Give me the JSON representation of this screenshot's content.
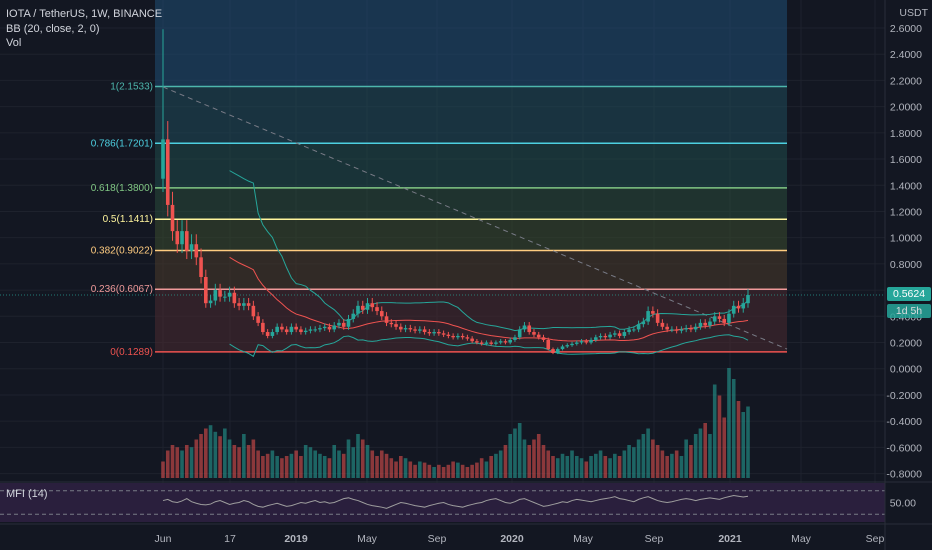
{
  "header": {
    "symbol": "IOTA / TetherUS, 1W, BINANCE",
    "indicator_bb": "BB (20, close, 2, 0)",
    "indicator_vol": "Vol",
    "indicator_mfi": "MFI (14)"
  },
  "price_axis": {
    "currency": "USDT",
    "ticks": [
      "2.6000",
      "2.4000",
      "2.2000",
      "2.0000",
      "1.8000",
      "1.6000",
      "1.4000",
      "1.2000",
      "1.0000",
      "0.8000",
      "0.6000",
      "0.4000",
      "0.2000",
      "0.0000",
      "-0.2000",
      "-0.4000",
      "-0.6000",
      "-0.8000"
    ],
    "current_price": "0.5624",
    "countdown": "1d 5h"
  },
  "mfi_axis": {
    "ticks": [
      "50.00"
    ]
  },
  "time_axis": {
    "labels": [
      "Jun",
      "17",
      "2019",
      "May",
      "Sep",
      "2020",
      "May",
      "Sep",
      "2021",
      "May",
      "Sep"
    ]
  },
  "colors": {
    "background": "#131722",
    "up": "#26a69a",
    "down": "#ef5350",
    "bb_band": "#26a69a",
    "bb_basis": "#ef5350",
    "trendline": "#787b86",
    "mfi_line": "#7e57c2",
    "mfi_bg": "#2a1f3d",
    "fib_1": "#4db6ac",
    "fib_0786": "#4dd0e1",
    "fib_0618": "#81c784",
    "fib_05": "#fff59d",
    "fib_0382": "#ffcc80",
    "fib_0236": "#ef9a9a",
    "fib_0": "#ef5350"
  },
  "chart_data": {
    "type": "candlestick",
    "title": "IOTA / TetherUS, 1W, BINANCE",
    "ylim": [
      -0.85,
      2.75
    ],
    "fib_levels": [
      {
        "label": "1(2.1533)",
        "ratio": 1,
        "price": 2.1533
      },
      {
        "label": "0.786(1.7201)",
        "ratio": 0.786,
        "price": 1.7201
      },
      {
        "label": "0.618(1.3800)",
        "ratio": 0.618,
        "price": 1.38
      },
      {
        "label": "0.5(1.1411)",
        "ratio": 0.5,
        "price": 1.1411
      },
      {
        "label": "0.382(0.9022)",
        "ratio": 0.382,
        "price": 0.9022
      },
      {
        "label": "0.236(0.6067)",
        "ratio": 0.236,
        "price": 0.6067
      },
      {
        "label": "0(0.1289)",
        "ratio": 0,
        "price": 0.1289
      }
    ],
    "closes": [
      1.75,
      1.25,
      1.05,
      0.95,
      1.05,
      0.9,
      0.95,
      0.85,
      0.7,
      0.5,
      0.52,
      0.6,
      0.55,
      0.55,
      0.58,
      0.5,
      0.48,
      0.5,
      0.48,
      0.4,
      0.35,
      0.28,
      0.25,
      0.28,
      0.32,
      0.3,
      0.28,
      0.32,
      0.3,
      0.28,
      0.29,
      0.3,
      0.3,
      0.31,
      0.32,
      0.3,
      0.33,
      0.35,
      0.32,
      0.38,
      0.42,
      0.48,
      0.45,
      0.5,
      0.47,
      0.44,
      0.4,
      0.35,
      0.34,
      0.32,
      0.3,
      0.31,
      0.3,
      0.29,
      0.3,
      0.28,
      0.27,
      0.28,
      0.27,
      0.26,
      0.25,
      0.24,
      0.25,
      0.24,
      0.23,
      0.21,
      0.2,
      0.19,
      0.2,
      0.19,
      0.2,
      0.21,
      0.2,
      0.22,
      0.24,
      0.3,
      0.33,
      0.28,
      0.26,
      0.24,
      0.22,
      0.15,
      0.12,
      0.15,
      0.17,
      0.18,
      0.19,
      0.2,
      0.21,
      0.2,
      0.22,
      0.24,
      0.25,
      0.24,
      0.26,
      0.27,
      0.25,
      0.28,
      0.3,
      0.3,
      0.34,
      0.36,
      0.44,
      0.42,
      0.35,
      0.32,
      0.3,
      0.3,
      0.29,
      0.3,
      0.31,
      0.3,
      0.32,
      0.35,
      0.33,
      0.36,
      0.4,
      0.38,
      0.35,
      0.42,
      0.48,
      0.46,
      0.5,
      0.5624
    ],
    "volume_relative": [
      0.15,
      0.25,
      0.3,
      0.28,
      0.25,
      0.3,
      0.28,
      0.35,
      0.4,
      0.45,
      0.48,
      0.42,
      0.38,
      0.45,
      0.35,
      0.3,
      0.28,
      0.4,
      0.3,
      0.35,
      0.25,
      0.2,
      0.22,
      0.25,
      0.2,
      0.18,
      0.2,
      0.22,
      0.25,
      0.2,
      0.3,
      0.28,
      0.25,
      0.22,
      0.2,
      0.18,
      0.3,
      0.25,
      0.22,
      0.35,
      0.28,
      0.4,
      0.35,
      0.3,
      0.25,
      0.2,
      0.25,
      0.22,
      0.18,
      0.15,
      0.2,
      0.18,
      0.15,
      0.12,
      0.15,
      0.14,
      0.12,
      0.1,
      0.12,
      0.1,
      0.12,
      0.15,
      0.14,
      0.12,
      0.1,
      0.12,
      0.14,
      0.18,
      0.15,
      0.2,
      0.22,
      0.25,
      0.3,
      0.4,
      0.45,
      0.5,
      0.35,
      0.3,
      0.35,
      0.4,
      0.3,
      0.25,
      0.2,
      0.18,
      0.22,
      0.2,
      0.25,
      0.2,
      0.18,
      0.15,
      0.2,
      0.22,
      0.25,
      0.2,
      0.18,
      0.22,
      0.2,
      0.25,
      0.3,
      0.28,
      0.35,
      0.4,
      0.45,
      0.35,
      0.3,
      0.25,
      0.2,
      0.22,
      0.25,
      0.2,
      0.35,
      0.3,
      0.4,
      0.45,
      0.5,
      0.4,
      0.85,
      0.75,
      0.55,
      1.0,
      0.9,
      0.7,
      0.6,
      0.65
    ],
    "mfi": [
      55,
      58,
      52,
      50,
      54,
      60,
      52,
      48,
      45,
      44,
      46,
      52,
      55,
      50,
      45,
      48,
      50,
      55,
      52,
      45,
      40,
      38,
      42,
      45,
      48,
      44,
      40,
      42,
      46,
      50,
      48,
      52,
      55,
      50,
      52,
      48,
      50,
      55,
      60,
      62,
      58,
      55,
      50,
      45,
      42,
      40,
      38,
      35,
      40,
      45,
      50,
      48,
      45,
      42,
      40,
      38,
      42,
      45,
      48,
      50,
      45,
      42,
      40,
      38,
      42,
      45,
      48,
      50,
      55,
      58,
      60,
      55,
      50,
      48,
      52,
      58,
      60,
      55,
      50,
      45,
      40,
      42,
      45,
      48,
      52,
      50,
      55,
      58,
      56,
      54,
      52,
      55,
      58,
      60,
      62,
      65,
      60,
      58,
      55,
      52,
      58,
      62,
      65,
      60,
      55,
      52,
      50,
      52,
      55,
      58,
      60,
      58,
      55,
      58,
      60,
      62,
      60,
      58,
      62,
      65,
      68,
      66,
      64,
      66
    ],
    "time_labels": [
      "Jun",
      "17",
      "2019",
      "May",
      "Sep",
      "2020",
      "May",
      "Sep",
      "2021",
      "May",
      "Sep"
    ],
    "current_price": 0.5624
  }
}
